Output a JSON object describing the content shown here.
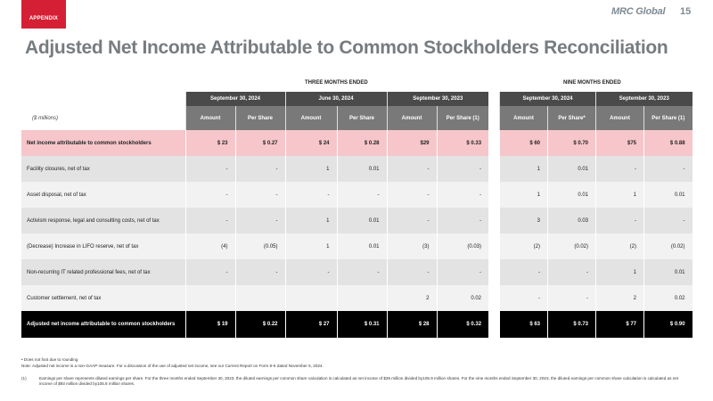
{
  "header": {
    "appendix_label": "APPENDIX",
    "logo_text": "MRC Global",
    "page_number": "15",
    "title": "Adjusted Net Income Attributable to Common Stockholders Reconciliation"
  },
  "table": {
    "three_months_label": "THREE MONTHS ENDED",
    "nine_months_label": "NINE MONTHS ENDED",
    "units_label": "($ millions)",
    "three_month_periods": [
      "September 30, 2024",
      "June 30, 2024",
      "September 30, 2023"
    ],
    "nine_month_periods": [
      "September 30, 2024",
      "September 30, 2023"
    ],
    "subheaders_three": [
      "Amount",
      "Per Share",
      "Amount",
      "Per Share",
      "Amount",
      "Per Share (1)"
    ],
    "subheaders_nine": [
      "Amount",
      "Per Share*",
      "Amount",
      "Per Share (1)"
    ],
    "rows": [
      {
        "label": "Net income attributable to common stockholders",
        "three": [
          "$ 23",
          "$ 0.27",
          "$ 24",
          "$ 0.28",
          "$29",
          "$ 0.33"
        ],
        "nine": [
          "$ 60",
          "$ 0.70",
          "$75",
          "$ 0.88"
        ]
      },
      {
        "label": "Facility closures, net of tax",
        "three": [
          "-",
          "-",
          "1",
          "0.01",
          "-",
          "-"
        ],
        "nine": [
          "1",
          "0.01",
          "-",
          "-"
        ]
      },
      {
        "label": "Asset disposal, net of tax",
        "three": [
          "-",
          "-",
          "-",
          "-",
          "-",
          "-"
        ],
        "nine": [
          "1",
          "0.01",
          "1",
          "0.01"
        ]
      },
      {
        "label": "Activism response, legal and consulting costs, net of tax",
        "three": [
          "-",
          "-",
          "1",
          "0.01",
          "-",
          "-"
        ],
        "nine": [
          "3",
          "0.03",
          "-",
          "-"
        ]
      },
      {
        "label": "(Decrease) Increase in LIFO reserve, net of tax",
        "three": [
          "(4)",
          "(0.05)",
          "1",
          "0.01",
          "(3)",
          "(0.03)"
        ],
        "nine": [
          "(2)",
          "(0.02)",
          "(2)",
          "(0.02)"
        ]
      },
      {
        "label": "Non-recurring IT related professional fees, net of tax",
        "three": [
          "-",
          "-",
          "-",
          "-",
          "-",
          "-"
        ],
        "nine": [
          "-",
          "-",
          "1",
          "0.01"
        ]
      },
      {
        "label": "Customer settlement, net of tax",
        "three": [
          "",
          "",
          "",
          "",
          "2",
          "0.02"
        ],
        "nine": [
          "-",
          "-",
          "2",
          "0.02"
        ]
      },
      {
        "label": "Adjusted net income attributable to common stockholders",
        "three": [
          "$ 19",
          "$ 0.22",
          "$ 27",
          "$ 0.31",
          "$ 28",
          "$ 0.32"
        ],
        "nine": [
          "$ 63",
          "$ 0.73",
          "$ 77",
          "$ 0.90"
        ]
      }
    ]
  },
  "footnotes": {
    "bullet": "•   Does not foot due to rounding",
    "note": "Note: Adjusted net income is a non-GAAP measure. For a discussion of the use of adjusted net income, see our Current Report on Form 8-K dated November 5, 2024.",
    "fn1_marker": "(1)",
    "fn1_text": "Earnings per share represents diluted earnings per share. For the three months ended September 30, 2023, the diluted earnings per common share calculation is calculated as net income of $35 million divided by105.9 million shares. For the nine months ended September 30, 2023, the diluted earnings per common share calculation is calculated as net income of $93 million divided by105.8 million shares."
  }
}
